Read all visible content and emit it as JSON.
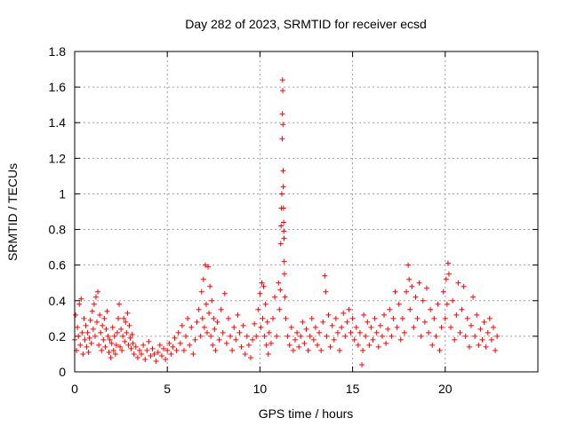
{
  "chart_data": {
    "type": "scatter",
    "title": "Day 282 of 2023, SRMTID for receiver ecsd",
    "xlabel": "GPS time / hours",
    "ylabel": "SRMTID / TECUs",
    "xlim": [
      0,
      25
    ],
    "ylim": [
      0,
      1.8
    ],
    "x_ticks": [
      0,
      5,
      10,
      15,
      20
    ],
    "x_tick_labels": [
      "0",
      "5",
      "10",
      "15",
      "20"
    ],
    "y_ticks": [
      0,
      0.2,
      0.4,
      0.6,
      0.8,
      1.0,
      1.2,
      1.4,
      1.6,
      1.8
    ],
    "y_tick_labels": [
      "0",
      "0.2",
      "0.4",
      "0.6",
      "0.8",
      "1",
      "1.2",
      "1.4",
      "1.6",
      "1.8"
    ],
    "grid": true,
    "marker": "+",
    "color": "#ff0000",
    "series": [
      {
        "name": "SRMTID",
        "points": [
          [
            0.0,
            0.18
          ],
          [
            0.05,
            0.32
          ],
          [
            0.1,
            0.12
          ],
          [
            0.15,
            0.25
          ],
          [
            0.2,
            0.2
          ],
          [
            0.25,
            0.38
          ],
          [
            0.3,
            0.15
          ],
          [
            0.35,
            0.41
          ],
          [
            0.4,
            0.22
          ],
          [
            0.45,
            0.1
          ],
          [
            0.5,
            0.3
          ],
          [
            0.55,
            0.18
          ],
          [
            0.6,
            0.26
          ],
          [
            0.65,
            0.14
          ],
          [
            0.7,
            0.22
          ],
          [
            0.75,
            0.11
          ],
          [
            0.8,
            0.19
          ],
          [
            0.85,
            0.29
          ],
          [
            0.9,
            0.16
          ],
          [
            0.95,
            0.34
          ],
          [
            1.0,
            0.24
          ],
          [
            1.05,
            0.38
          ],
          [
            1.1,
            0.2
          ],
          [
            1.15,
            0.42
          ],
          [
            1.2,
            0.28
          ],
          [
            1.25,
            0.45
          ],
          [
            1.3,
            0.15
          ],
          [
            1.35,
            0.32
          ],
          [
            1.4,
            0.22
          ],
          [
            1.45,
            0.12
          ],
          [
            1.5,
            0.26
          ],
          [
            1.55,
            0.18
          ],
          [
            1.6,
            0.3
          ],
          [
            1.65,
            0.14
          ],
          [
            1.7,
            0.24
          ],
          [
            1.75,
            0.34
          ],
          [
            1.8,
            0.2
          ],
          [
            1.85,
            0.11
          ],
          [
            1.9,
            0.18
          ],
          [
            1.95,
            0.08
          ],
          [
            2.0,
            0.16
          ],
          [
            2.05,
            0.25
          ],
          [
            2.1,
            0.12
          ],
          [
            2.15,
            0.2
          ],
          [
            2.2,
            0.1
          ],
          [
            2.25,
            0.15
          ],
          [
            2.3,
            0.22
          ],
          [
            2.35,
            0.3
          ],
          [
            2.4,
            0.38
          ],
          [
            2.45,
            0.14
          ],
          [
            2.5,
            0.24
          ],
          [
            2.55,
            0.12
          ],
          [
            2.6,
            0.2
          ],
          [
            2.65,
            0.3
          ],
          [
            2.7,
            0.17
          ],
          [
            2.75,
            0.28
          ],
          [
            2.8,
            0.22
          ],
          [
            2.85,
            0.33
          ],
          [
            2.9,
            0.15
          ],
          [
            2.95,
            0.26
          ],
          [
            3.0,
            0.19
          ],
          [
            3.05,
            0.13
          ],
          [
            3.1,
            0.21
          ],
          [
            3.15,
            0.16
          ],
          [
            3.2,
            0.1
          ],
          [
            3.3,
            0.14
          ],
          [
            3.4,
            0.08
          ],
          [
            3.5,
            0.12
          ],
          [
            3.6,
            0.1
          ],
          [
            3.7,
            0.15
          ],
          [
            3.8,
            0.07
          ],
          [
            3.9,
            0.12
          ],
          [
            4.0,
            0.17
          ],
          [
            4.1,
            0.09
          ],
          [
            4.2,
            0.13
          ],
          [
            4.3,
            0.1
          ],
          [
            4.4,
            0.06
          ],
          [
            4.5,
            0.11
          ],
          [
            4.6,
            0.15
          ],
          [
            4.7,
            0.09
          ],
          [
            4.8,
            0.13
          ],
          [
            4.9,
            0.07
          ],
          [
            5.0,
            0.12
          ],
          [
            5.1,
            0.16
          ],
          [
            5.2,
            0.1
          ],
          [
            5.3,
            0.14
          ],
          [
            5.4,
            0.19
          ],
          [
            5.5,
            0.12
          ],
          [
            5.6,
            0.22
          ],
          [
            5.7,
            0.16
          ],
          [
            5.8,
            0.26
          ],
          [
            5.9,
            0.12
          ],
          [
            6.0,
            0.2
          ],
          [
            6.1,
            0.3
          ],
          [
            6.2,
            0.15
          ],
          [
            6.3,
            0.25
          ],
          [
            6.4,
            0.1
          ],
          [
            6.5,
            0.18
          ],
          [
            6.6,
            0.28
          ],
          [
            6.7,
            0.35
          ],
          [
            6.8,
            0.2
          ],
          [
            6.85,
            0.45
          ],
          [
            6.9,
            0.3
          ],
          [
            6.95,
            0.52
          ],
          [
            7.0,
            0.25
          ],
          [
            7.05,
            0.6
          ],
          [
            7.1,
            0.38
          ],
          [
            7.15,
            0.22
          ],
          [
            7.2,
            0.59
          ],
          [
            7.25,
            0.33
          ],
          [
            7.3,
            0.48
          ],
          [
            7.35,
            0.2
          ],
          [
            7.4,
            0.4
          ],
          [
            7.45,
            0.15
          ],
          [
            7.5,
            0.3
          ],
          [
            7.55,
            0.24
          ],
          [
            7.6,
            0.12
          ],
          [
            7.7,
            0.28
          ],
          [
            7.8,
            0.18
          ],
          [
            7.9,
            0.35
          ],
          [
            8.0,
            0.22
          ],
          [
            8.1,
            0.44
          ],
          [
            8.2,
            0.16
          ],
          [
            8.3,
            0.3
          ],
          [
            8.4,
            0.2
          ],
          [
            8.5,
            0.12
          ],
          [
            8.6,
            0.25
          ],
          [
            8.7,
            0.18
          ],
          [
            8.8,
            0.32
          ],
          [
            8.9,
            0.22
          ],
          [
            9.0,
            0.14
          ],
          [
            9.1,
            0.26
          ],
          [
            9.2,
            0.1
          ],
          [
            9.3,
            0.2
          ],
          [
            9.4,
            0.15
          ],
          [
            9.5,
            0.08
          ],
          [
            9.6,
            0.18
          ],
          [
            9.7,
            0.27
          ],
          [
            9.8,
            0.2
          ],
          [
            9.9,
            0.35
          ],
          [
            10.0,
            0.44
          ],
          [
            10.05,
            0.25
          ],
          [
            10.1,
            0.5
          ],
          [
            10.15,
            0.3
          ],
          [
            10.2,
            0.48
          ],
          [
            10.25,
            0.2
          ],
          [
            10.3,
            0.38
          ],
          [
            10.35,
            0.15
          ],
          [
            10.4,
            0.28
          ],
          [
            10.45,
            0.1
          ],
          [
            10.5,
            0.22
          ],
          [
            10.6,
            0.16
          ],
          [
            10.7,
            0.3
          ],
          [
            10.8,
            0.42
          ],
          [
            10.9,
            0.2
          ],
          [
            11.0,
            0.5
          ],
          [
            11.05,
            0.35
          ],
          [
            11.1,
            0.46
          ],
          [
            11.12,
            0.72
          ],
          [
            11.14,
            0.82
          ],
          [
            11.16,
            0.92
          ],
          [
            11.18,
            1.0
          ],
          [
            11.2,
            1.31
          ],
          [
            11.21,
            1.45
          ],
          [
            11.22,
            1.64
          ],
          [
            11.23,
            1.58
          ],
          [
            11.24,
            1.39
          ],
          [
            11.25,
            1.13
          ],
          [
            11.26,
            1.04
          ],
          [
            11.27,
            0.92
          ],
          [
            11.28,
            0.84
          ],
          [
            11.29,
            0.79
          ],
          [
            11.3,
            0.75
          ],
          [
            11.31,
            0.62
          ],
          [
            11.32,
            0.55
          ],
          [
            11.35,
            0.42
          ],
          [
            11.4,
            0.3
          ],
          [
            11.5,
            0.2
          ],
          [
            11.6,
            0.15
          ],
          [
            11.7,
            0.25
          ],
          [
            11.8,
            0.12
          ],
          [
            11.9,
            0.18
          ],
          [
            12.0,
            0.22
          ],
          [
            12.1,
            0.14
          ],
          [
            12.2,
            0.2
          ],
          [
            12.3,
            0.28
          ],
          [
            12.4,
            0.16
          ],
          [
            12.5,
            0.24
          ],
          [
            12.6,
            0.12
          ],
          [
            12.7,
            0.2
          ],
          [
            12.8,
            0.3
          ],
          [
            12.9,
            0.18
          ],
          [
            13.0,
            0.25
          ],
          [
            13.1,
            0.15
          ],
          [
            13.2,
            0.22
          ],
          [
            13.3,
            0.12
          ],
          [
            13.4,
            0.28
          ],
          [
            13.5,
            0.54
          ],
          [
            13.55,
            0.45
          ],
          [
            13.6,
            0.2
          ],
          [
            13.7,
            0.32
          ],
          [
            13.8,
            0.14
          ],
          [
            13.9,
            0.26
          ],
          [
            14.0,
            0.18
          ],
          [
            14.1,
            0.3
          ],
          [
            14.2,
            0.22
          ],
          [
            14.3,
            0.12
          ],
          [
            14.4,
            0.25
          ],
          [
            14.5,
            0.33
          ],
          [
            14.6,
            0.2
          ],
          [
            14.7,
            0.28
          ],
          [
            14.8,
            0.35
          ],
          [
            14.9,
            0.22
          ],
          [
            15.0,
            0.3
          ],
          [
            15.1,
            0.18
          ],
          [
            15.2,
            0.25
          ],
          [
            15.3,
            0.15
          ],
          [
            15.4,
            0.22
          ],
          [
            15.5,
            0.04
          ],
          [
            15.55,
            0.12
          ],
          [
            15.6,
            0.32
          ],
          [
            15.7,
            0.2
          ],
          [
            15.8,
            0.28
          ],
          [
            15.9,
            0.15
          ],
          [
            16.0,
            0.25
          ],
          [
            16.1,
            0.18
          ],
          [
            16.2,
            0.3
          ],
          [
            16.3,
            0.22
          ],
          [
            16.4,
            0.14
          ],
          [
            16.5,
            0.26
          ],
          [
            16.6,
            0.2
          ],
          [
            16.7,
            0.32
          ],
          [
            16.8,
            0.16
          ],
          [
            16.9,
            0.24
          ],
          [
            17.0,
            0.35
          ],
          [
            17.1,
            0.2
          ],
          [
            17.2,
            0.3
          ],
          [
            17.3,
            0.45
          ],
          [
            17.4,
            0.25
          ],
          [
            17.5,
            0.38
          ],
          [
            17.6,
            0.18
          ],
          [
            17.7,
            0.3
          ],
          [
            17.8,
            0.22
          ],
          [
            17.9,
            0.45
          ],
          [
            18.0,
            0.6
          ],
          [
            18.05,
            0.52
          ],
          [
            18.1,
            0.35
          ],
          [
            18.2,
            0.48
          ],
          [
            18.3,
            0.25
          ],
          [
            18.4,
            0.42
          ],
          [
            18.5,
            0.3
          ],
          [
            18.6,
            0.5
          ],
          [
            18.7,
            0.2
          ],
          [
            18.8,
            0.4
          ],
          [
            18.9,
            0.28
          ],
          [
            19.0,
            0.47
          ],
          [
            19.1,
            0.22
          ],
          [
            19.2,
            0.35
          ],
          [
            19.3,
            0.15
          ],
          [
            19.4,
            0.3
          ],
          [
            19.5,
            0.2
          ],
          [
            19.6,
            0.38
          ],
          [
            19.7,
            0.12
          ],
          [
            19.8,
            0.25
          ],
          [
            19.9,
            0.45
          ],
          [
            20.0,
            0.3
          ],
          [
            20.05,
            0.52
          ],
          [
            20.1,
            0.38
          ],
          [
            20.15,
            0.61
          ],
          [
            20.2,
            0.55
          ],
          [
            20.3,
            0.25
          ],
          [
            20.4,
            0.4
          ],
          [
            20.5,
            0.18
          ],
          [
            20.6,
            0.32
          ],
          [
            20.7,
            0.5
          ],
          [
            20.8,
            0.22
          ],
          [
            20.9,
            0.35
          ],
          [
            21.0,
            0.48
          ],
          [
            21.1,
            0.2
          ],
          [
            21.2,
            0.3
          ],
          [
            21.3,
            0.14
          ],
          [
            21.4,
            0.26
          ],
          [
            21.5,
            0.42
          ],
          [
            21.6,
            0.2
          ],
          [
            21.7,
            0.32
          ],
          [
            21.8,
            0.15
          ],
          [
            21.9,
            0.24
          ],
          [
            22.0,
            0.18
          ],
          [
            22.1,
            0.28
          ],
          [
            22.2,
            0.14
          ],
          [
            22.3,
            0.22
          ],
          [
            22.4,
            0.3
          ],
          [
            22.5,
            0.18
          ],
          [
            22.6,
            0.25
          ],
          [
            22.7,
            0.12
          ],
          [
            22.8,
            0.2
          ]
        ]
      }
    ]
  }
}
